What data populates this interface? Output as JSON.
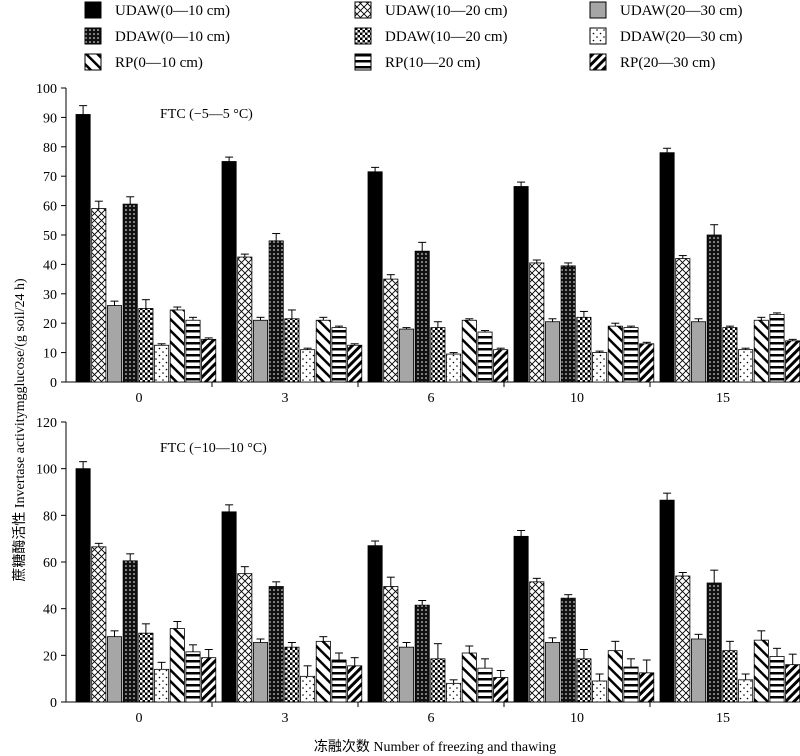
{
  "legend": [
    {
      "label": "UDAW(0—10 cm)",
      "pattern": "solid-black"
    },
    {
      "label": "UDAW(10—20 cm)",
      "pattern": "crosshatch"
    },
    {
      "label": "UDAW(20—30 cm)",
      "pattern": "solid-gray"
    },
    {
      "label": "DDAW(0—10 cm)",
      "pattern": "dots-dense"
    },
    {
      "label": "DDAW(10—20 cm)",
      "pattern": "checker"
    },
    {
      "label": "DDAW(20—30 cm)",
      "pattern": "dots-sparse"
    },
    {
      "label": "RP(0—10 cm)",
      "pattern": "diag-light"
    },
    {
      "label": "RP(10—20 cm)",
      "pattern": "horizontal"
    },
    {
      "label": "RP(20—30 cm)",
      "pattern": "diag-bold"
    }
  ],
  "ylabel": "蔗糖酶活性  Invertase activitymgglucose/(g soil/24 h)",
  "xlabel": "冻融次数  Number of freezing and thawing",
  "chart_data": [
    {
      "type": "bar",
      "annotation": "FTC (−5—5 °C)",
      "categories": [
        "0",
        "3",
        "6",
        "10",
        "15"
      ],
      "ylim": [
        0,
        100
      ],
      "yticks": [
        0,
        10,
        20,
        30,
        40,
        50,
        60,
        70,
        80,
        90,
        100
      ],
      "series": [
        {
          "name": "UDAW(0—10 cm)",
          "values": [
            91,
            75,
            71.5,
            66.5,
            78
          ],
          "errors": [
            3,
            1.5,
            1.5,
            1.5,
            1.5
          ]
        },
        {
          "name": "UDAW(10—20 cm)",
          "values": [
            59,
            42.5,
            35,
            40.5,
            42
          ],
          "errors": [
            2.5,
            1,
            1.5,
            1,
            1
          ]
        },
        {
          "name": "UDAW(20—30 cm)",
          "values": [
            26,
            21,
            18,
            20.5,
            20.5
          ],
          "errors": [
            1.5,
            1,
            0.5,
            1,
            1
          ]
        },
        {
          "name": "DDAW(0—10 cm)",
          "values": [
            60.5,
            48,
            44.5,
            39.5,
            50
          ],
          "errors": [
            2.5,
            2.5,
            3,
            1,
            3.5
          ]
        },
        {
          "name": "DDAW(10—20 cm)",
          "values": [
            25,
            21.5,
            18.5,
            22,
            18.5
          ],
          "errors": [
            3,
            3,
            2,
            2,
            0.5
          ]
        },
        {
          "name": "DDAW(20—30 cm)",
          "values": [
            12.5,
            11,
            9.5,
            10,
            11
          ],
          "errors": [
            0.5,
            0.5,
            0.5,
            0.5,
            0.5
          ]
        },
        {
          "name": "RP(0—10 cm)",
          "values": [
            24.5,
            21,
            21,
            19,
            21
          ],
          "errors": [
            1,
            1,
            0.5,
            1,
            1
          ]
        },
        {
          "name": "RP(10—20 cm)",
          "values": [
            21,
            18.5,
            17,
            18.5,
            23
          ],
          "errors": [
            1,
            0.5,
            0.5,
            0.5,
            0.5
          ]
        },
        {
          "name": "RP(20—30 cm)",
          "values": [
            14.5,
            12.5,
            11,
            13,
            14
          ],
          "errors": [
            0.5,
            0.5,
            0.5,
            0.5,
            0.5
          ]
        }
      ]
    },
    {
      "type": "bar",
      "annotation": "FTC (−10—10 °C)",
      "categories": [
        "0",
        "3",
        "6",
        "10",
        "15"
      ],
      "ylim": [
        0,
        120
      ],
      "yticks": [
        0,
        20,
        40,
        60,
        80,
        100,
        120
      ],
      "series": [
        {
          "name": "UDAW(0—10 cm)",
          "values": [
            100,
            81.5,
            67,
            71,
            86.5
          ],
          "errors": [
            3,
            3,
            2,
            2.5,
            3
          ]
        },
        {
          "name": "UDAW(10—20 cm)",
          "values": [
            66.5,
            55,
            49.5,
            51.5,
            54
          ],
          "errors": [
            1.5,
            3,
            4,
            1.5,
            1.5
          ]
        },
        {
          "name": "UDAW(20—30 cm)",
          "values": [
            28,
            25.5,
            23.5,
            25.5,
            27
          ],
          "errors": [
            2.5,
            1.5,
            2,
            2,
            2
          ]
        },
        {
          "name": "DDAW(0—10 cm)",
          "values": [
            60.5,
            49.5,
            41.5,
            44.5,
            51
          ],
          "errors": [
            3,
            2,
            2,
            1.5,
            5.5
          ]
        },
        {
          "name": "DDAW(10—20 cm)",
          "values": [
            29.5,
            23.5,
            18.5,
            18.5,
            22
          ],
          "errors": [
            4,
            2,
            6.5,
            4,
            4
          ]
        },
        {
          "name": "DDAW(20—30 cm)",
          "values": [
            14,
            11,
            8,
            9,
            9.5
          ],
          "errors": [
            3,
            4.5,
            1.5,
            3,
            2.5
          ]
        },
        {
          "name": "RP(0—10 cm)",
          "values": [
            31.5,
            26,
            21,
            22,
            26.5
          ],
          "errors": [
            3,
            2,
            3,
            4,
            4
          ]
        },
        {
          "name": "RP(10—20 cm)",
          "values": [
            21.5,
            18,
            14.5,
            15,
            19.5
          ],
          "errors": [
            3,
            3,
            4,
            3.5,
            3.5
          ]
        },
        {
          "name": "RP(20—30 cm)",
          "values": [
            19,
            15.5,
            10.5,
            12.5,
            16
          ],
          "errors": [
            3.5,
            3.5,
            3,
            5.5,
            4.5
          ]
        }
      ]
    }
  ]
}
